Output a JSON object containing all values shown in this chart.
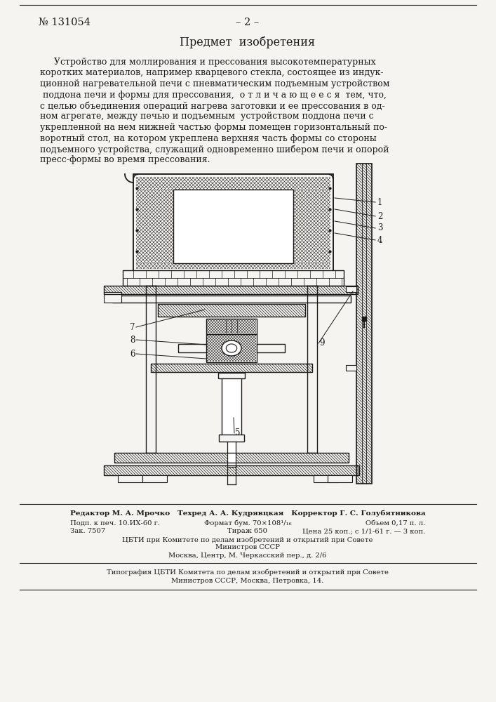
{
  "bg_color": "#f5f4f0",
  "text_color": "#1a1a1a",
  "patent_number": "№ 131054",
  "page_number": "– 2 –",
  "section_title": "Предмет  изобретения",
  "body_text_lines": [
    "     Устройство для моллирования и прессования высокотемпературных",
    "коротких материалов, например кварцевого стекла, состоящее из индук-",
    "ционной нагревательной печи с пневматическим подъемным устройством",
    " поддона печи и формы для прессования,  о т л и ч а ю щ е е с я  тем, что,",
    "с целью объединения операций нагрева заготовки и ее прессования в од-",
    "ном агрегате, между печью и подъемным  устройством поддона печи с",
    "укрепленной на нем нижней частью формы помещен горизонтальный по-",
    "воротный стол, на котором укреплена верхняя часть формы со стороны",
    "подъемного устройства, служащий одновременно шибером печи и опорой",
    "пресс-формы во время прессования."
  ],
  "footer_line1": "Редактор М. А. Мрочко   Техред А. А. Кудрявцкая   Корректор Г. С. Голубятникова",
  "footer_col1_lines": [
    "Подп. к печ. 10.ИХ-60 г.",
    "Зак. 7507"
  ],
  "footer_col2_lines": [
    "Формат бум. 70×108¹/₁₆",
    "Тираж 650"
  ],
  "footer_col3_lines": [
    "Объем 0,17 п. л.",
    "Цена 25 коп.; с 1/1-61 г. — 3 коп."
  ],
  "footer_center_lines": [
    "ЦБТИ при Комитете по делам изобретений и открытий при Совете",
    "Министров СССР",
    "Москва, Центр, М. Черкасский пер., д. 2/6"
  ],
  "typo_lines": [
    "Типография ЦБТИ Комитета по делам изобретений и открытий при Совете",
    "Министров СССР, Москва, Петровка, 14."
  ]
}
